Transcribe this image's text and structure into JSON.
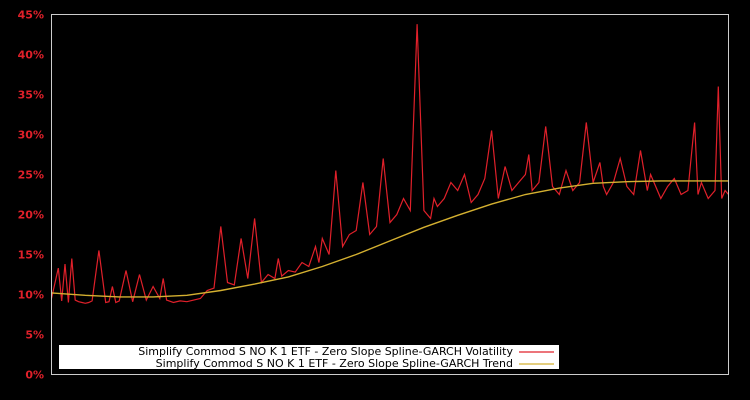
{
  "chart_data": {
    "type": "line",
    "title": "",
    "xlabel": "",
    "ylabel": "",
    "ylim": [
      0,
      45
    ],
    "y_unit": "%",
    "y_ticks": [
      0,
      5,
      10,
      15,
      20,
      25,
      30,
      35,
      40,
      45
    ],
    "y_tick_labels": [
      "0%",
      "5%",
      "10%",
      "15%",
      "20%",
      "25%",
      "30%",
      "35%",
      "40%",
      "45%"
    ],
    "x_ticks": [],
    "grid": false,
    "legend_position": "lower-left",
    "background": "#000000",
    "axis_color": "#cccccc",
    "tick_label_color": "#e0202a",
    "series": [
      {
        "name": "Simplify Commod S NO K 1 ETF - Zero Slope Spline-GARCH Volatility",
        "color": "#e0202a",
        "x_frac": [
          0.0,
          0.01,
          0.015,
          0.02,
          0.025,
          0.03,
          0.035,
          0.04,
          0.045,
          0.05,
          0.055,
          0.06,
          0.07,
          0.08,
          0.085,
          0.09,
          0.095,
          0.1,
          0.11,
          0.12,
          0.13,
          0.14,
          0.15,
          0.16,
          0.165,
          0.17,
          0.18,
          0.19,
          0.2,
          0.21,
          0.22,
          0.23,
          0.24,
          0.25,
          0.26,
          0.27,
          0.28,
          0.29,
          0.3,
          0.31,
          0.32,
          0.33,
          0.335,
          0.34,
          0.35,
          0.36,
          0.37,
          0.38,
          0.39,
          0.395,
          0.4,
          0.41,
          0.42,
          0.43,
          0.44,
          0.45,
          0.46,
          0.47,
          0.48,
          0.49,
          0.5,
          0.51,
          0.52,
          0.53,
          0.54,
          0.55,
          0.56,
          0.565,
          0.57,
          0.58,
          0.59,
          0.6,
          0.61,
          0.62,
          0.63,
          0.64,
          0.65,
          0.66,
          0.67,
          0.68,
          0.69,
          0.7,
          0.705,
          0.71,
          0.72,
          0.73,
          0.74,
          0.75,
          0.76,
          0.77,
          0.78,
          0.79,
          0.8,
          0.81,
          0.815,
          0.82,
          0.83,
          0.84,
          0.85,
          0.86,
          0.87,
          0.88,
          0.885,
          0.89,
          0.9,
          0.91,
          0.92,
          0.93,
          0.94,
          0.95,
          0.955,
          0.96,
          0.97,
          0.98,
          0.985,
          0.99,
          0.995,
          1.0
        ],
        "values": [
          9.5,
          13.3,
          9.2,
          13.8,
          9.0,
          14.5,
          9.3,
          9.1,
          9.0,
          8.9,
          9.0,
          9.2,
          15.5,
          9.0,
          9.1,
          11.0,
          9.0,
          9.2,
          13.0,
          9.1,
          12.5,
          9.3,
          11.0,
          9.5,
          12.0,
          9.3,
          9.0,
          9.2,
          9.1,
          9.3,
          9.5,
          10.5,
          10.8,
          18.5,
          11.5,
          11.2,
          17.0,
          12.0,
          19.5,
          11.5,
          12.5,
          12.0,
          14.5,
          12.3,
          13.0,
          12.8,
          14.0,
          13.5,
          16.0,
          14.0,
          17.0,
          15.0,
          25.5,
          16.0,
          17.5,
          18.0,
          24.0,
          17.5,
          18.5,
          27.0,
          19.0,
          20.0,
          22.0,
          20.5,
          43.8,
          20.5,
          19.5,
          22.0,
          21.0,
          22.0,
          24.0,
          23.0,
          25.0,
          21.5,
          22.5,
          24.5,
          30.5,
          22.0,
          26.0,
          23.0,
          24.0,
          25.0,
          27.5,
          23.0,
          24.0,
          31.0,
          23.5,
          22.5,
          25.5,
          23.0,
          24.0,
          31.5,
          24.0,
          26.5,
          23.5,
          22.5,
          24.0,
          27.0,
          23.5,
          22.5,
          28.0,
          23.0,
          25.0,
          24.0,
          22.0,
          23.5,
          24.5,
          22.5,
          23.0,
          31.5,
          22.5,
          24.0,
          22.0,
          23.0,
          36.0,
          22.0,
          23.0,
          22.5
        ]
      },
      {
        "name": "Simplify Commod S NO K 1 ETF - Zero Slope Spline-GARCH Trend",
        "color": "#d4b030",
        "x_frac": [
          0.0,
          0.05,
          0.1,
          0.15,
          0.2,
          0.25,
          0.3,
          0.35,
          0.4,
          0.45,
          0.5,
          0.55,
          0.6,
          0.65,
          0.7,
          0.75,
          0.8,
          0.85,
          0.9,
          0.95,
          1.0
        ],
        "values": [
          10.2,
          9.9,
          9.7,
          9.7,
          9.9,
          10.5,
          11.3,
          12.2,
          13.5,
          15.0,
          16.7,
          18.4,
          19.9,
          21.3,
          22.5,
          23.3,
          23.9,
          24.1,
          24.2,
          24.2,
          24.2
        ]
      }
    ]
  },
  "legend": {
    "items": [
      {
        "label": "Simplify Commod S NO K 1 ETF - Zero Slope Spline-GARCH Volatility",
        "color": "#e0202a"
      },
      {
        "label": "Simplify Commod S NO K 1 ETF - Zero Slope Spline-GARCH Trend",
        "color": "#d4b030"
      }
    ]
  }
}
